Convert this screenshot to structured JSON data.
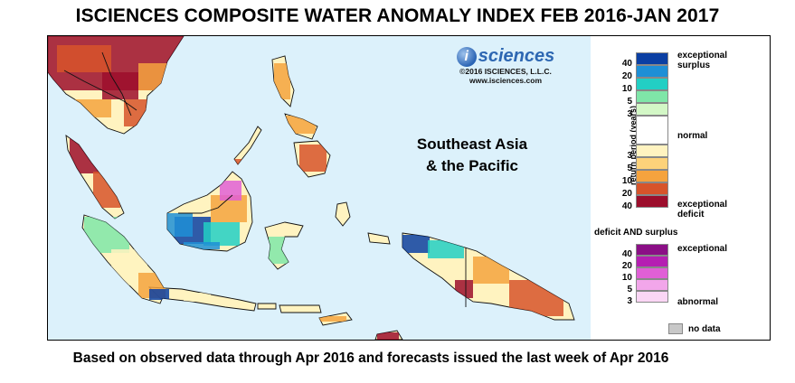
{
  "title": "ISCIENCES COMPOSITE WATER ANOMALY INDEX FEB 2016-JAN 2017",
  "logo": {
    "brand": "sciences",
    "mark": "i",
    "copyright": "©2016 ISCIENCES, L.L.C.",
    "website": "www.isciences.com"
  },
  "region_label": {
    "line1": "Southeast Asia",
    "line2": "& the Pacific"
  },
  "legend": {
    "axis_label": "return period (years)",
    "colors": {
      "ocean": "#dcf1fb",
      "surplus_40": "#0b3fa3",
      "surplus_20": "#1e8fd6",
      "surplus_10": "#22cfc4",
      "surplus_5": "#7fe6a8",
      "surplus_3": "#d3f7c6",
      "normal": "#ffffff",
      "deficit_3": "#fff3c0",
      "deficit_5": "#fdd27a",
      "deficit_10": "#f5a33e",
      "deficit_20": "#d7542a",
      "deficit_40": "#9c0e2c",
      "both_40": "#8b0f86",
      "both_20": "#b51fb2",
      "both_10": "#e05fd6",
      "both_5": "#f2a6ea",
      "both_3": "#fbd6f5",
      "no_data": "#c8c8c8",
      "land_line": "#111111"
    },
    "surplus_items": [
      {
        "num": "40",
        "color_key": "surplus_40"
      },
      {
        "num": "20",
        "color_key": "surplus_20"
      },
      {
        "num": "10",
        "color_key": "surplus_10"
      },
      {
        "num": "5",
        "color_key": "surplus_5"
      },
      {
        "num": "3",
        "color_key": "surplus_3"
      }
    ],
    "deficit_items": [
      {
        "num": "3",
        "color_key": "deficit_3"
      },
      {
        "num": "5",
        "color_key": "deficit_5"
      },
      {
        "num": "10",
        "color_key": "deficit_10"
      },
      {
        "num": "20",
        "color_key": "deficit_20"
      },
      {
        "num": "40",
        "color_key": "deficit_40"
      }
    ],
    "both_items": [
      {
        "num": "40",
        "color_key": "both_40"
      },
      {
        "num": "20",
        "color_key": "both_20"
      },
      {
        "num": "10",
        "color_key": "both_10"
      },
      {
        "num": "5",
        "color_key": "both_5"
      },
      {
        "num": "3",
        "color_key": "both_3"
      }
    ],
    "labels": {
      "exceptional_surplus_1": "exceptional",
      "exceptional_surplus_2": "surplus",
      "normal": "normal",
      "exceptional_deficit_1": "exceptional",
      "exceptional_deficit_2": "deficit",
      "both_heading": "deficit AND surplus",
      "both_exceptional": "exceptional",
      "both_abnormal": "abnormal",
      "no_data": "no data"
    }
  },
  "footer": "Based on observed data through Apr 2016 and forecasts issued the last week of Apr 2016"
}
